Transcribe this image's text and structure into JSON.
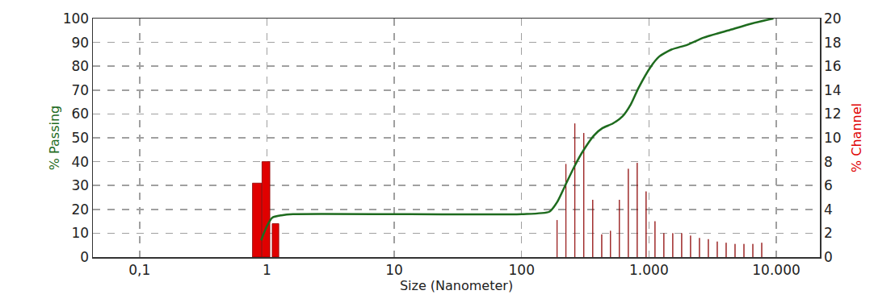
{
  "chart_data": {
    "type": "bar",
    "x_label": "Size (Nanometer)",
    "y_label": "% Passing",
    "y2_label": "% Channel",
    "log": "x",
    "grid": true,
    "xlim": [
      0.043,
      22000
    ],
    "xticks": [
      {
        "value": 0.1,
        "label": "0,1"
      },
      1,
      10,
      100,
      {
        "value": 1000,
        "label": "1.000"
      },
      {
        "value": 10000,
        "label": "10.000"
      }
    ],
    "ylim": [
      0,
      100
    ],
    "yticks": [
      0,
      10,
      20,
      30,
      40,
      50,
      60,
      70,
      80,
      90,
      100
    ],
    "y2lim": [
      0,
      20
    ],
    "y2ticks": [
      0,
      2,
      4,
      6,
      8,
      10,
      12,
      14,
      16,
      18,
      20
    ],
    "series": [
      {
        "type": "bar",
        "axis": "y2",
        "color": "#e00000",
        "x": [
          0.84,
          0.985,
          1.17,
          190,
          223,
          262,
          308,
          362,
          426,
          499,
          586,
          689,
          809,
          950,
          1116,
          1310,
          1539,
          1808,
          2123,
          2494,
          2929,
          3440,
          4040,
          4745,
          5573,
          6546,
          7688
        ],
        "values": [
          6.2,
          8,
          2.8,
          3.1,
          7.8,
          11.2,
          10.4,
          4.8,
          1.9,
          2.2,
          4.8,
          7.4,
          7.9,
          5.5,
          3,
          2,
          2,
          2,
          1.8,
          1.6,
          1.5,
          1.3,
          1.2,
          1.1,
          1.1,
          1.1,
          1.2
        ]
      },
      {
        "type": "line",
        "color": "#1e6b1e",
        "x": [
          0.9,
          1.0,
          1.1,
          1.3,
          1.6,
          100,
          165,
          190,
          220,
          260,
          300,
          370,
          430,
          520,
          620,
          720,
          830,
          1040,
          1200,
          1500,
          2000,
          2700,
          4200,
          6500,
          9500
        ],
        "values": [
          7,
          13,
          16.5,
          17.5,
          18,
          18,
          19,
          23,
          30,
          38,
          44,
          51,
          54,
          56,
          59,
          64,
          71,
          80,
          84,
          87,
          89,
          92,
          95,
          98,
          100
        ]
      }
    ]
  }
}
